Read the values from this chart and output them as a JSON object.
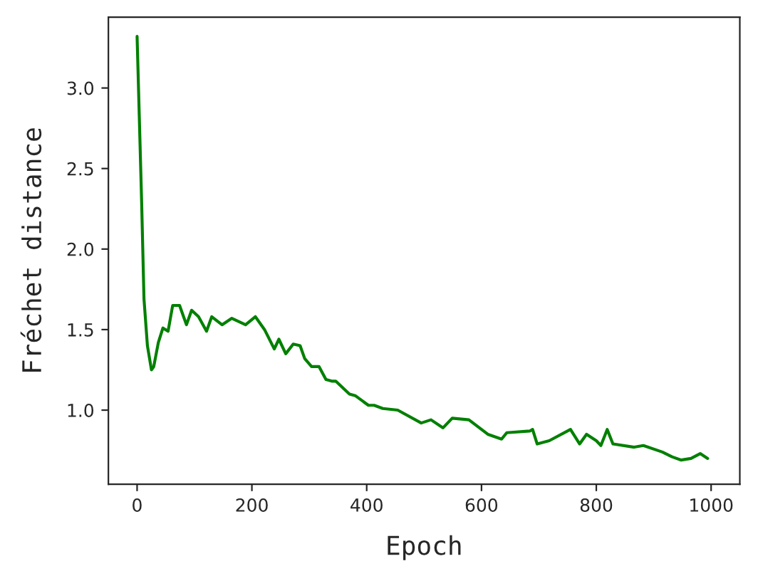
{
  "chart_data": {
    "type": "line",
    "xlabel": "Epoch",
    "ylabel": "Fréchet distance",
    "xlim": [
      -50,
      1050
    ],
    "ylim": [
      0.54,
      3.44
    ],
    "xticks": [
      0,
      200,
      400,
      600,
      800,
      1000
    ],
    "yticks": [
      {
        "value": 1,
        "label": "1.0"
      },
      1.5,
      {
        "value": 2,
        "label": "2.0"
      },
      2.5,
      {
        "value": 3,
        "label": "3.0"
      }
    ],
    "grid": false,
    "legend": false,
    "marker": "none",
    "line_style": "solid",
    "series": [
      {
        "color": "#008000",
        "x": [
          0,
          8,
          12,
          18,
          25,
          29,
          37,
          45,
          54,
          62,
          74,
          86,
          95,
          107,
          121,
          130,
          148,
          165,
          189,
          206,
          222,
          239,
          247,
          259,
          272,
          284,
          292,
          304,
          317,
          329,
          339,
          346,
          370,
          380,
          403,
          413,
          428,
          454,
          495,
          512,
          533,
          549,
          578,
          611,
          635,
          644,
          684,
          689,
          697,
          718,
          755,
          771,
          783,
          800,
          808,
          819,
          829,
          866,
          882,
          915,
          932,
          948,
          965,
          981,
          994
        ],
        "values": [
          3.32,
          2.28,
          1.69,
          1.4,
          1.25,
          1.27,
          1.42,
          1.51,
          1.49,
          1.65,
          1.65,
          1.53,
          1.62,
          1.58,
          1.49,
          1.58,
          1.53,
          1.57,
          1.53,
          1.58,
          1.5,
          1.38,
          1.44,
          1.35,
          1.41,
          1.4,
          1.32,
          1.27,
          1.27,
          1.19,
          1.18,
          1.18,
          1.1,
          1.09,
          1.03,
          1.03,
          1.01,
          1.0,
          0.92,
          0.94,
          0.89,
          0.95,
          0.94,
          0.85,
          0.82,
          0.86,
          0.87,
          0.88,
          0.79,
          0.81,
          0.88,
          0.79,
          0.85,
          0.81,
          0.78,
          0.88,
          0.79,
          0.77,
          0.78,
          0.74,
          0.71,
          0.69,
          0.7,
          0.73,
          0.7
        ]
      }
    ]
  }
}
